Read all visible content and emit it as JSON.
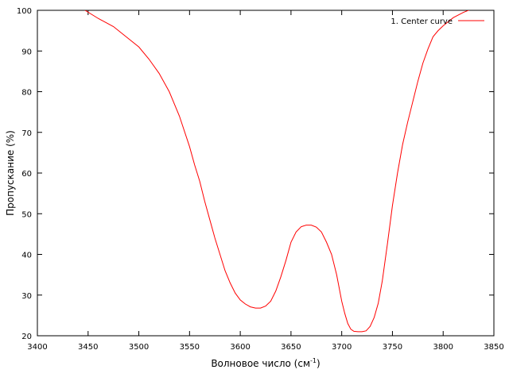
{
  "chart_data": {
    "type": "line",
    "xlabel": "Волновое число (см",
    "xlabel_sup": "-1",
    "xlabel_close": ")",
    "ylabel": "Пропускание (%)",
    "xlim": [
      3400,
      3850
    ],
    "ylim": [
      20,
      100
    ],
    "x_ticks": [
      3400,
      3450,
      3500,
      3550,
      3600,
      3650,
      3700,
      3750,
      3800,
      3850
    ],
    "y_ticks": [
      20,
      30,
      40,
      50,
      60,
      70,
      80,
      90,
      100
    ],
    "grid": false,
    "legend_position": "top-right",
    "series": [
      {
        "name": "1. Center curve",
        "color": "#ff0000",
        "x": [
          3447,
          3460,
          3475,
          3490,
          3500,
          3510,
          3520,
          3530,
          3540,
          3550,
          3555,
          3560,
          3565,
          3570,
          3575,
          3580,
          3585,
          3590,
          3595,
          3600,
          3605,
          3610,
          3615,
          3620,
          3625,
          3630,
          3635,
          3640,
          3645,
          3650,
          3655,
          3660,
          3665,
          3670,
          3675,
          3680,
          3685,
          3690,
          3695,
          3700,
          3703,
          3706,
          3709,
          3712,
          3716,
          3720,
          3724,
          3728,
          3732,
          3736,
          3740,
          3745,
          3750,
          3755,
          3760,
          3765,
          3770,
          3775,
          3780,
          3785,
          3790,
          3795,
          3800,
          3810,
          3820,
          3828,
          3835
        ],
        "y": [
          100,
          98,
          96,
          93,
          91,
          88,
          84.5,
          80,
          74,
          66.5,
          62,
          58,
          53,
          48.5,
          44,
          40,
          36,
          33,
          30.5,
          28.8,
          27.8,
          27.1,
          26.8,
          26.8,
          27.3,
          28.5,
          31,
          34.5,
          38.5,
          43,
          45.5,
          46.8,
          47.2,
          47.2,
          46.7,
          45.5,
          43,
          40,
          35,
          28.5,
          25.5,
          23,
          21.6,
          21.1,
          21,
          21,
          21.2,
          22.3,
          24.5,
          28,
          33.5,
          42.5,
          52,
          60,
          67,
          72.5,
          77.5,
          82.5,
          87,
          90.5,
          93.5,
          95,
          96.2,
          98.2,
          99.5,
          100.3,
          100.8
        ]
      }
    ]
  }
}
